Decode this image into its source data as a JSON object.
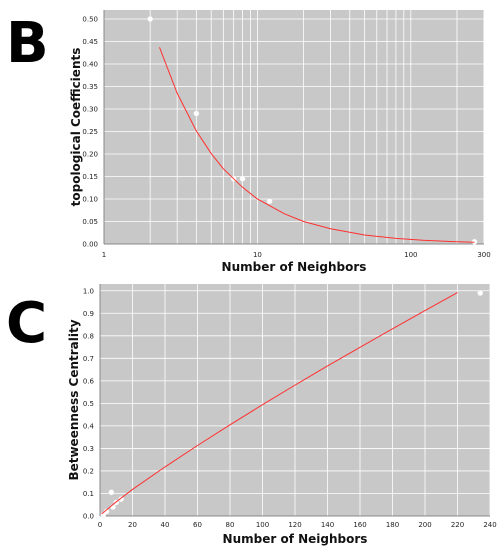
{
  "panels": [
    {
      "letter": "B",
      "chart_data": {
        "type": "scatter",
        "xscale": "log",
        "xlim": [
          1,
          300
        ],
        "ylim": [
          0,
          0.52
        ],
        "xlabel": "Number of Neighbors",
        "ylabel": "topological Coefficients",
        "xticks": [
          1,
          10,
          100,
          300
        ],
        "xtick_labels": [
          "1",
          "10",
          "100",
          "300"
        ],
        "yticks": [
          0,
          0.05,
          0.1,
          0.15,
          0.2,
          0.25,
          0.3,
          0.35,
          0.4,
          0.45,
          0.5
        ],
        "ytick_labels": [
          "0.00",
          "0.05",
          "0.10",
          "0.15",
          "0.20",
          "0.25",
          "0.30",
          "0.35",
          "0.40",
          "0.45",
          "0.50"
        ],
        "grid": true,
        "series": [
          {
            "kind": "points",
            "x": [
              2,
              4,
              7,
              8,
              12,
              260
            ],
            "y": [
              0.5,
              0.29,
              0.145,
              0.145,
              0.095,
              0.005
            ]
          },
          {
            "kind": "fit",
            "x": [
              2.3,
              3,
              4,
              5,
              6,
              8,
              10,
              15,
              20,
              30,
              50,
              80,
              120,
              180,
              260
            ],
            "y": [
              0.437,
              0.335,
              0.251,
              0.201,
              0.167,
              0.126,
              0.1,
              0.067,
              0.05,
              0.034,
              0.02,
              0.0126,
              0.0084,
              0.0056,
              0.0039
            ]
          }
        ]
      }
    },
    {
      "letter": "C",
      "chart_data": {
        "type": "scatter",
        "xlim": [
          0,
          240
        ],
        "ylim": [
          0,
          1.03
        ],
        "xlabel": "Number of Neighbors",
        "ylabel": "Betweenness Centrality",
        "xticks": [
          0,
          20,
          40,
          60,
          80,
          100,
          120,
          140,
          160,
          180,
          200,
          220,
          240
        ],
        "xtick_labels": [
          "0",
          "20",
          "40",
          "60",
          "80",
          "100",
          "120",
          "140",
          "160",
          "180",
          "200",
          "220",
          "240"
        ],
        "yticks": [
          0,
          0.1,
          0.2,
          0.3,
          0.4,
          0.5,
          0.6,
          0.7,
          0.8,
          0.9,
          1.0
        ],
        "ytick_labels": [
          "0.0",
          "0.1",
          "0.2",
          "0.3",
          "0.4",
          "0.5",
          "0.6",
          "0.7",
          "0.8",
          "0.9",
          "1.0"
        ],
        "grid": true,
        "series": [
          {
            "kind": "points",
            "x": [
              2,
              4,
              7,
              8,
              10,
              13,
              234
            ],
            "y": [
              0.005,
              0.02,
              0.105,
              0.04,
              0.06,
              0.075,
              0.99
            ]
          },
          {
            "kind": "fit",
            "x": [
              1,
              10,
              20,
              40,
              60,
              80,
              100,
              120,
              140,
              160,
              180,
              200,
              220
            ],
            "y": [
              0.009,
              0.063,
              0.118,
              0.218,
              0.313,
              0.405,
              0.494,
              0.581,
              0.666,
              0.749,
              0.831,
              0.912,
              0.992
            ]
          }
        ]
      }
    }
  ],
  "colors": {
    "plot_bg": "#c8c8c8",
    "grid": "#ffffff",
    "fit_line": "#ff3030",
    "point": "#ffffff"
  }
}
